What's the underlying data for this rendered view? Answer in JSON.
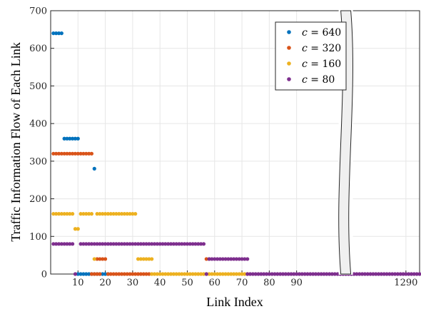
{
  "chart_data": {
    "type": "scatter",
    "title": "",
    "xlabel": "Link Index",
    "ylabel": "Traffic Information Flow of Each Link",
    "ylim": [
      0,
      700
    ],
    "yticks": [
      "0",
      "100",
      "200",
      "300",
      "400",
      "500",
      "600",
      "700"
    ],
    "xticks": [
      "10",
      "20",
      "30",
      "40",
      "50",
      "60",
      "70",
      "80",
      "90",
      "1290"
    ],
    "xticks_values": [
      10,
      20,
      30,
      40,
      50,
      60,
      70,
      80,
      90,
      130
    ],
    "axis_break": {
      "x": 108
    },
    "grid": true,
    "legend": "top-right",
    "legend_items": [
      {
        "var": "c",
        "text": " = 640",
        "color": "#0072BD"
      },
      {
        "var": "c",
        "text": " = 320",
        "color": "#D95319"
      },
      {
        "var": "c",
        "text": " = 160",
        "color": "#EDB120"
      },
      {
        "var": "c",
        "text": " = 80",
        "color": "#7E2F8E"
      }
    ],
    "series": [
      {
        "name": "c = 640",
        "color": "#0072BD",
        "segments": [
          {
            "x_from": 1,
            "x_to": 4,
            "y": 640
          },
          {
            "x_from": 5,
            "x_to": 10,
            "y": 360
          },
          {
            "x_from": 16,
            "x_to": 16,
            "y": 280
          },
          {
            "x_from": 10,
            "x_to": 21,
            "y": 0
          }
        ]
      },
      {
        "name": "c = 320",
        "color": "#D95319",
        "segments": [
          {
            "x_from": 1,
            "x_to": 15,
            "y": 320
          },
          {
            "x_from": 17,
            "x_to": 20,
            "y": 40
          },
          {
            "x_from": 57,
            "x_to": 58,
            "y": 40
          },
          {
            "x_from": 15,
            "x_to": 18,
            "y": 0
          },
          {
            "x_from": 21,
            "x_to": 36,
            "y": 0
          }
        ]
      },
      {
        "name": "c = 160",
        "color": "#EDB120",
        "segments": [
          {
            "x_from": 1,
            "x_to": 8,
            "y": 160
          },
          {
            "x_from": 11,
            "x_to": 15,
            "y": 160
          },
          {
            "x_from": 17,
            "x_to": 31,
            "y": 160
          },
          {
            "x_from": 9,
            "x_to": 10,
            "y": 120
          },
          {
            "x_from": 16,
            "x_to": 16,
            "y": 40
          },
          {
            "x_from": 32,
            "x_to": 37,
            "y": 40
          },
          {
            "x_from": 37,
            "x_to": 72,
            "y": 0
          }
        ]
      },
      {
        "name": "c = 80",
        "color": "#7E2F8E",
        "segments": [
          {
            "x_from": 1,
            "x_to": 8,
            "y": 80
          },
          {
            "x_from": 11,
            "x_to": 56,
            "y": 80
          },
          {
            "x_from": 58,
            "x_to": 72,
            "y": 40
          },
          {
            "x_from": 9,
            "x_to": 9,
            "y": 0
          },
          {
            "x_from": 57,
            "x_to": 57,
            "y": 0
          },
          {
            "x_from": 72,
            "x_to": 135,
            "y": 0
          }
        ]
      }
    ]
  }
}
